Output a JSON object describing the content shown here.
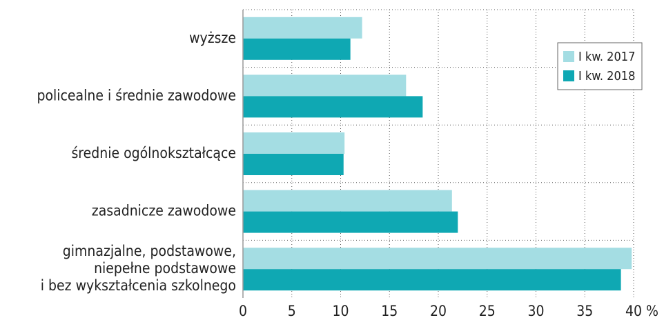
{
  "chart_data": {
    "type": "bar",
    "orientation": "horizontal",
    "categories": [
      "wyższe",
      "policealne i średnie zawodowe",
      "średnie ogólnokształcące",
      "zasadnicze zawodowe",
      [
        "gimnazjalne, podstawowe,",
        "niepełne podstawowe",
        "i bez wykształcenia szkolnego"
      ]
    ],
    "series": [
      {
        "name": "I kw. 2017",
        "color": "#a4dde3",
        "values": [
          12.2,
          16.7,
          10.4,
          21.4,
          39.8
        ]
      },
      {
        "name": "I kw. 2018",
        "color": "#0fa8b3",
        "values": [
          11.0,
          18.4,
          10.3,
          22.0,
          38.7
        ]
      }
    ],
    "xlim": [
      0,
      40
    ],
    "xticks": [
      0,
      5,
      10,
      15,
      20,
      25,
      30,
      35,
      {
        "value": 40,
        "label": "40 %"
      }
    ],
    "grid": true,
    "legend": "upper right"
  }
}
